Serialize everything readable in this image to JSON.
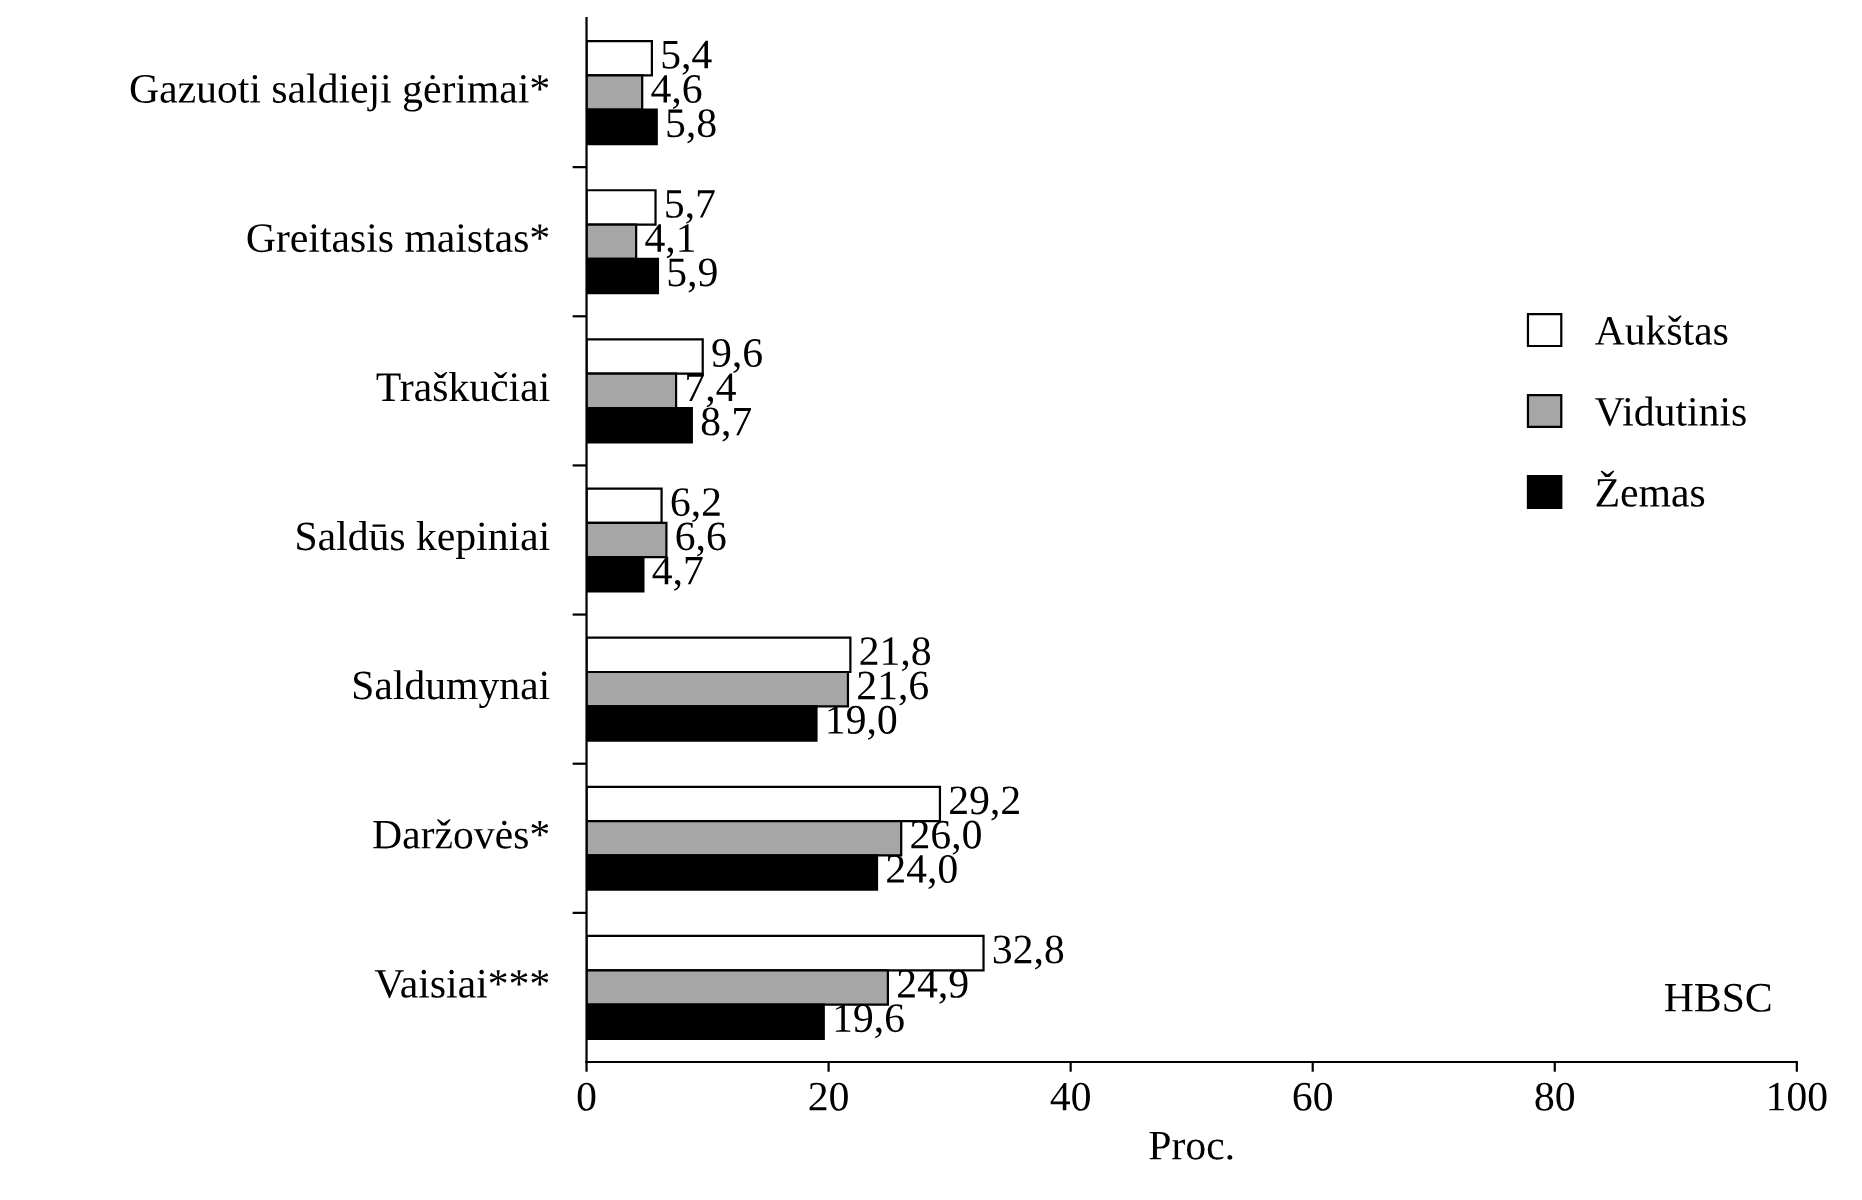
{
  "chart_data": {
    "type": "bar",
    "orientation": "horizontal",
    "xlabel": "Proc.",
    "categories": [
      "Gazuoti saldieji gėrimai*",
      "Greitasis maistas*",
      "Traškučiai",
      "Saldūs kepiniai",
      "Saldumynai",
      "Daržovės*",
      "Vaisiai***"
    ],
    "series": [
      {
        "name": "Aukštas",
        "color": "#ffffff",
        "values": [
          5.4,
          5.7,
          9.6,
          6.2,
          21.8,
          29.2,
          32.8
        ],
        "value_labels": [
          "5,4",
          "5,7",
          "9,6",
          "6,2",
          "21,8",
          "29,2",
          "32,8"
        ]
      },
      {
        "name": "Vidutinis",
        "color": "#a6a6a6",
        "values": [
          4.6,
          4.1,
          7.4,
          6.6,
          21.6,
          26.0,
          24.9
        ],
        "value_labels": [
          "4,6",
          "4,1",
          "7,4",
          "6,6",
          "21,6",
          "26,0",
          "24,9"
        ]
      },
      {
        "name": "Žemas",
        "color": "#000000",
        "values": [
          5.8,
          5.9,
          8.7,
          4.7,
          19.0,
          24.0,
          19.6
        ],
        "value_labels": [
          "5,8",
          "5,9",
          "8,7",
          "4,7",
          "19,0",
          "24,0",
          "19,6"
        ]
      }
    ],
    "xlim": [
      0,
      100
    ],
    "xticks": [
      0,
      20,
      40,
      60,
      80,
      100
    ],
    "annotations": [
      "HBSC"
    ],
    "legend": "right",
    "grid": false
  }
}
